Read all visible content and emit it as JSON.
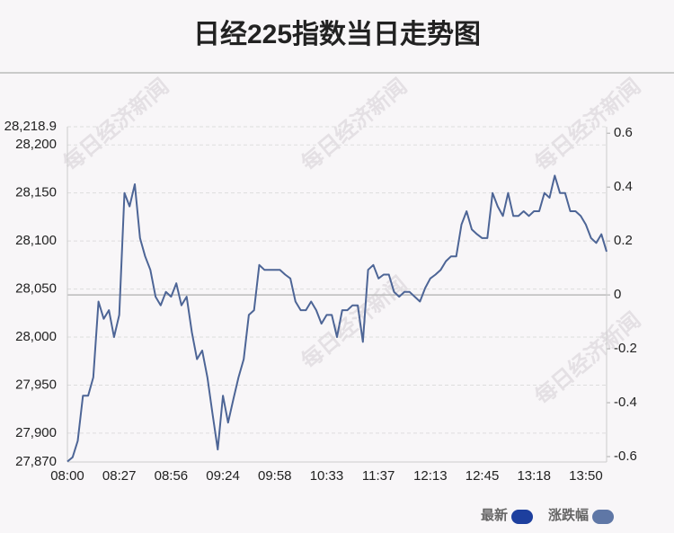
{
  "chart_data": {
    "type": "line",
    "title": "日经225指数当日走势图",
    "watermark": "每日经济新闻",
    "categories": [
      "08:00",
      null,
      null,
      null,
      null,
      null,
      null,
      null,
      null,
      null,
      "08:27",
      null,
      null,
      null,
      null,
      null,
      null,
      null,
      null,
      null,
      "08:56",
      null,
      null,
      null,
      null,
      null,
      null,
      null,
      null,
      null,
      "09:24",
      null,
      null,
      null,
      null,
      null,
      null,
      null,
      null,
      null,
      "09:58",
      null,
      null,
      null,
      null,
      null,
      null,
      null,
      null,
      null,
      "10:33",
      null,
      null,
      null,
      null,
      null,
      null,
      null,
      null,
      null,
      "11:37",
      null,
      null,
      null,
      null,
      null,
      null,
      null,
      null,
      null,
      "12:13",
      null,
      null,
      null,
      null,
      null,
      null,
      null,
      null,
      null,
      "12:45",
      null,
      null,
      null,
      null,
      null,
      null,
      null,
      null,
      null,
      "13:18",
      null,
      null,
      null,
      null,
      null,
      null,
      null,
      null,
      null,
      "13:50",
      null,
      null,
      null,
      null
    ],
    "series": [
      {
        "name": "最新",
        "color": "#4d6596",
        "values": [
          27870.5,
          27875,
          27892,
          27939,
          27939,
          27958,
          28037,
          28019,
          28028,
          28000,
          28023,
          28150,
          28136,
          28159,
          28103,
          28084,
          28070,
          28042,
          28033,
          28047,
          28042,
          28056,
          28033,
          28042,
          28005,
          27977,
          27986,
          27958,
          27920,
          27883,
          27939,
          27911,
          27935,
          27958,
          27977,
          28023,
          28028,
          28075,
          28070,
          28070,
          28070,
          28070,
          28065,
          28061,
          28037,
          28028,
          28028,
          28037,
          28028,
          28014,
          28023,
          28023,
          28000,
          28028,
          28028,
          28033,
          28033,
          27995,
          28070,
          28075,
          28061,
          28065,
          28065,
          28047,
          28042,
          28047,
          28047,
          28042,
          28037,
          28051,
          28061,
          28065,
          28070,
          28079,
          28084,
          28084,
          28117,
          28131,
          28112,
          28107,
          28103,
          28103,
          28150,
          28136,
          28126,
          28150,
          28126,
          28126,
          28131,
          28126,
          28131,
          28131,
          28150,
          28145,
          28168,
          28150,
          28150,
          28131,
          28131,
          28126,
          28117,
          28103,
          28098,
          28107,
          28089
        ]
      }
    ],
    "legend": [
      {
        "name": "最新",
        "color": "#1d3f9e"
      },
      {
        "name": "涨跌幅",
        "color": "#5f77a6"
      }
    ],
    "ylim": [
      27870,
      28218.9
    ],
    "yticks": [
      {
        "value": 27870,
        "label": "27,870"
      },
      {
        "value": 27900,
        "label": "27,900"
      },
      {
        "value": 27950,
        "label": "27,950"
      },
      {
        "value": 28000,
        "label": "28,000"
      },
      {
        "value": 28050,
        "label": "28,050"
      },
      {
        "value": 28100,
        "label": "28,100"
      },
      {
        "value": 28150,
        "label": "28,150"
      },
      {
        "value": 28200,
        "label": "28,200"
      },
      {
        "value": 28218.9,
        "label": "28,218.9"
      }
    ],
    "y2lim": [
      -0.62,
      0.624
    ],
    "y2ticks": [
      -0.6,
      -0.4,
      -0.2,
      0,
      0.2,
      0.4,
      0.6
    ],
    "reference_y2": 0,
    "grid": true
  }
}
